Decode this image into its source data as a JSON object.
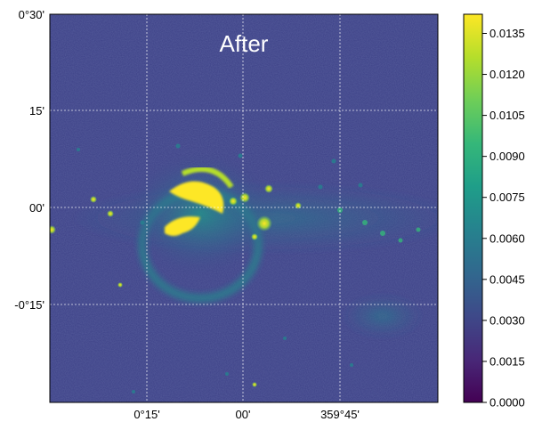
{
  "chart_data": {
    "type": "heatmap",
    "title": "After",
    "colormap": "viridis",
    "x_ticks": [
      "0°15'",
      "00'",
      "359°45'"
    ],
    "y_ticks": [
      "0°30'",
      "15'",
      "00'",
      "-0°15'"
    ],
    "grid": true,
    "colorbar": {
      "range": [
        0.0,
        0.0142
      ],
      "ticks": [
        "0.0000",
        "0.0015",
        "0.0030",
        "0.0045",
        "0.0060",
        "0.0075",
        "0.0090",
        "0.0105",
        "0.0120",
        "0.0135"
      ]
    },
    "background_level": 0.0028,
    "features": [
      {
        "kind": "bright-arc",
        "level": 0.0142
      },
      {
        "kind": "bright-blob",
        "level": 0.0142
      },
      {
        "kind": "bubble-shell",
        "level": 0.0075
      },
      {
        "kind": "galactic-plane",
        "level": 0.0045
      },
      {
        "kind": "lower-right-nebula",
        "level": 0.005
      }
    ],
    "colors": {
      "viridis": [
        "#440154",
        "#482878",
        "#3e4989",
        "#31688e",
        "#26828e",
        "#1f9e89",
        "#35b779",
        "#6ece58",
        "#b5de2b",
        "#fde725"
      ]
    }
  }
}
